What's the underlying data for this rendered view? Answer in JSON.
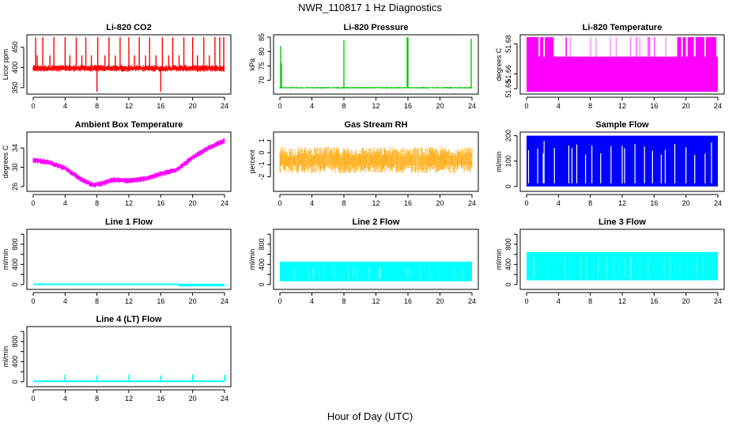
{
  "figure": {
    "title": "NWR_110817  1 Hz Diagnostics",
    "xlabel": "Hour of Day (UTC)"
  },
  "chart_data": [
    {
      "id": "co2",
      "type": "line",
      "title": "Li-820 CO2",
      "ylabel": "Licor ppm",
      "color": "#ff0000",
      "xlim": [
        0,
        24
      ],
      "ylim": [
        340,
        475
      ],
      "xticks": [
        0,
        4,
        8,
        12,
        16,
        20,
        24
      ],
      "yticks": [
        350,
        400,
        450
      ],
      "baseline": 398,
      "noise": 7,
      "spikes": [
        {
          "x": 0.3,
          "y": 475
        },
        {
          "x": 0.5,
          "y": 430
        },
        {
          "x": 1.2,
          "y": 475
        },
        {
          "x": 2.1,
          "y": 430
        },
        {
          "x": 2.6,
          "y": 475
        },
        {
          "x": 4.0,
          "y": 475
        },
        {
          "x": 4.6,
          "y": 430
        },
        {
          "x": 5.4,
          "y": 475
        },
        {
          "x": 6.1,
          "y": 430
        },
        {
          "x": 6.6,
          "y": 475
        },
        {
          "x": 7.3,
          "y": 430
        },
        {
          "x": 8.0,
          "y": 340
        },
        {
          "x": 8.1,
          "y": 475
        },
        {
          "x": 9.0,
          "y": 430
        },
        {
          "x": 9.5,
          "y": 475
        },
        {
          "x": 10.3,
          "y": 430
        },
        {
          "x": 10.9,
          "y": 475
        },
        {
          "x": 12.0,
          "y": 475
        },
        {
          "x": 12.7,
          "y": 430
        },
        {
          "x": 13.3,
          "y": 475
        },
        {
          "x": 14.1,
          "y": 430
        },
        {
          "x": 14.6,
          "y": 475
        },
        {
          "x": 15.4,
          "y": 430
        },
        {
          "x": 16.0,
          "y": 340
        },
        {
          "x": 16.2,
          "y": 475
        },
        {
          "x": 17.0,
          "y": 430
        },
        {
          "x": 17.5,
          "y": 475
        },
        {
          "x": 18.3,
          "y": 430
        },
        {
          "x": 18.9,
          "y": 475
        },
        {
          "x": 20.0,
          "y": 475
        },
        {
          "x": 20.6,
          "y": 430
        },
        {
          "x": 21.4,
          "y": 475
        },
        {
          "x": 22.1,
          "y": 430
        },
        {
          "x": 22.8,
          "y": 475
        },
        {
          "x": 23.4,
          "y": 475
        },
        {
          "x": 23.9,
          "y": 475
        }
      ]
    },
    {
      "id": "pressure",
      "type": "line",
      "title": "Li-820 Pressure",
      "ylabel": "kPa",
      "color": "#00cc00",
      "xlim": [
        0,
        24
      ],
      "ylim": [
        66,
        85
      ],
      "xticks": [
        0,
        4,
        8,
        12,
        16,
        20,
        24
      ],
      "yticks": [
        70,
        75,
        80,
        85
      ],
      "baseline": 67.4,
      "noise": 0.25,
      "spikes": [
        {
          "x": 0.1,
          "y": 82
        },
        {
          "x": 0.2,
          "y": 76
        },
        {
          "x": 8.0,
          "y": 84
        },
        {
          "x": 15.9,
          "y": 85
        },
        {
          "x": 16.0,
          "y": 85
        },
        {
          "x": 23.9,
          "y": 84.5
        }
      ]
    },
    {
      "id": "temperature",
      "type": "band",
      "title": "Li-820 Temperature",
      "ylabel": "degrees C",
      "color": "#ff00ff",
      "xlim": [
        0,
        24
      ],
      "ylim": [
        51.648,
        51.6845
      ],
      "xticks": [
        0,
        4,
        8,
        12,
        16,
        20,
        24
      ],
      "yticks": [
        51.65,
        51.66,
        51.68
      ],
      "ytick_labels": [
        "51.65",
        "51.66",
        "51.68"
      ],
      "band_low": 51.648,
      "band_high": 51.6715,
      "top": 51.6845,
      "blocks": [
        [
          0,
          1.5
        ],
        [
          1.7,
          2.1
        ],
        [
          2.3,
          3.4
        ],
        [
          4.9,
          5.05
        ],
        [
          16.0,
          16.1
        ],
        [
          18.9,
          19.4
        ],
        [
          19.6,
          20.0
        ],
        [
          20.2,
          21.0
        ],
        [
          21.2,
          22.3
        ],
        [
          22.5,
          23.8
        ]
      ]
    },
    {
      "id": "ambient",
      "type": "line",
      "title": "Ambient Box Temperature",
      "ylabel": "degrees C",
      "color": "#ff00ff",
      "xlim": [
        0,
        24
      ],
      "ylim": [
        25.5,
        36.8
      ],
      "xticks": [
        0,
        4,
        8,
        12,
        16,
        20,
        24
      ],
      "yticks": [
        26,
        30,
        34
      ],
      "curve": [
        [
          0,
          31.5
        ],
        [
          2,
          31
        ],
        [
          4,
          29.8
        ],
        [
          6,
          27.5
        ],
        [
          7.5,
          26.3
        ],
        [
          8.5,
          26.6
        ],
        [
          10,
          27.4
        ],
        [
          12,
          27.2
        ],
        [
          14,
          27.6
        ],
        [
          16,
          28.6
        ],
        [
          18,
          29.5
        ],
        [
          20,
          32
        ],
        [
          22,
          34
        ],
        [
          24,
          35.5
        ]
      ],
      "noise": 0.6
    },
    {
      "id": "rh",
      "type": "line",
      "title": "Gas Stream RH",
      "ylabel": "percent",
      "color": "#ffa500",
      "xlim": [
        0,
        24
      ],
      "ylim": [
        -3,
        1.5
      ],
      "xticks": [
        0,
        4,
        8,
        12,
        16,
        20,
        24
      ],
      "yticks": [
        -2,
        -1,
        0,
        1
      ],
      "baseline": -0.6,
      "noise": 0.9
    },
    {
      "id": "sample",
      "type": "square",
      "title": "Sample Flow",
      "ylabel": "ml/min",
      "color": "#0000ff",
      "xlim": [
        0,
        24
      ],
      "ylim": [
        -10,
        205
      ],
      "xticks": [
        0,
        4,
        8,
        12,
        16,
        20,
        24
      ],
      "yticks": [
        0,
        100,
        200
      ],
      "high": 200,
      "low": 0,
      "gaps": [
        0.25,
        1.4,
        2.1,
        2.2,
        3.5,
        5.3,
        5.7,
        6.3,
        7.4,
        8.2,
        9.3,
        10.6,
        12.0,
        12.3,
        13.6,
        14.8,
        15.8,
        16.9,
        17.4,
        18.6,
        20.0,
        21.1,
        22.4,
        23.2
      ]
    },
    {
      "id": "line1",
      "type": "flow",
      "title": "Line 1 Flow",
      "ylabel": "ml/min",
      "color": "#00ffff",
      "xlim": [
        0,
        24
      ],
      "ylim": [
        -50,
        1050
      ],
      "xticks": [
        0,
        4,
        8,
        12,
        16,
        20,
        24
      ],
      "yticks": [
        0,
        200,
        400,
        600,
        800,
        1000
      ],
      "ytick_labels": [
        "0",
        "",
        "400",
        "",
        "800",
        ""
      ],
      "segments": [
        [
          0,
          18.2,
          5,
          5
        ],
        [
          18.2,
          24,
          -20,
          0
        ]
      ]
    },
    {
      "id": "line2",
      "type": "flow",
      "title": "Line 2 Flow",
      "ylabel": "ml/min",
      "color": "#00ffff",
      "xlim": [
        0,
        24
      ],
      "ylim": [
        -50,
        1050
      ],
      "xticks": [
        0,
        4,
        8,
        12,
        16,
        20,
        24
      ],
      "yticks": [
        0,
        200,
        400,
        600,
        800,
        1000
      ],
      "ytick_labels": [
        "0",
        "",
        "400",
        "",
        "800",
        ""
      ],
      "segments": [
        [
          0,
          24,
          80,
          440
        ]
      ]
    },
    {
      "id": "line3",
      "type": "flow",
      "title": "Line 3 Flow",
      "ylabel": "ml/min",
      "color": "#00ffff",
      "xlim": [
        0,
        24
      ],
      "ylim": [
        -50,
        1050
      ],
      "xticks": [
        0,
        4,
        8,
        12,
        16,
        20,
        24
      ],
      "yticks": [
        0,
        200,
        400,
        600,
        800,
        1000
      ],
      "ytick_labels": [
        "0",
        "",
        "400",
        "",
        "800",
        ""
      ],
      "segments": [
        [
          0,
          24,
          100,
          630
        ]
      ]
    },
    {
      "id": "line4",
      "type": "flow",
      "title": "Line 4 (LT) Flow",
      "ylabel": "ml/min",
      "color": "#00ffff",
      "xlim": [
        0,
        24
      ],
      "ylim": [
        -50,
        1050
      ],
      "xticks": [
        0,
        4,
        8,
        12,
        16,
        20,
        24
      ],
      "yticks": [
        0,
        200,
        400,
        600,
        800,
        1000
      ],
      "ytick_labels": [
        "0",
        "",
        "400",
        "",
        "800",
        ""
      ],
      "segments": [
        [
          0,
          24,
          10,
          10
        ]
      ],
      "spikes": [
        {
          "x": 4.0,
          "y": 150
        },
        {
          "x": 8.0,
          "y": 130
        },
        {
          "x": 12.0,
          "y": 150
        },
        {
          "x": 16.0,
          "y": 130
        },
        {
          "x": 20.0,
          "y": 150
        },
        {
          "x": 24.0,
          "y": 140
        }
      ]
    }
  ]
}
